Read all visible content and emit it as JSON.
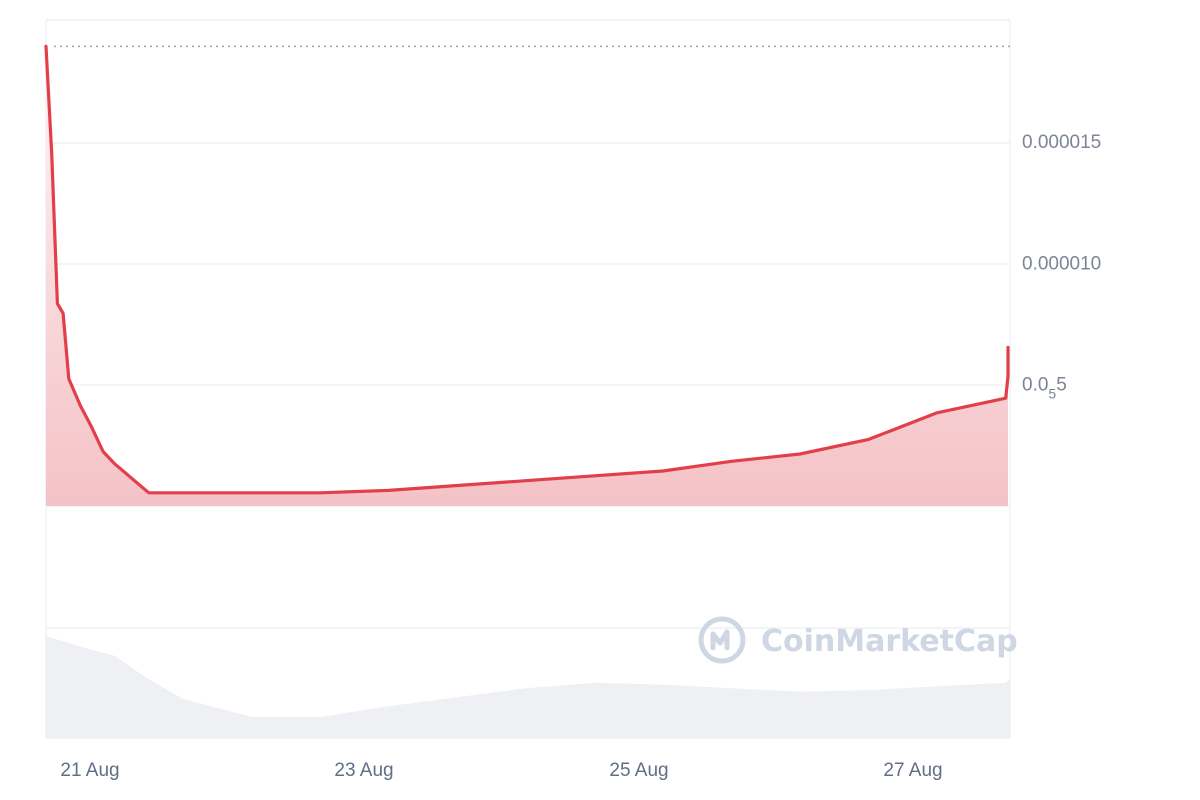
{
  "watermark": {
    "text": "CoinMarketCap",
    "icon": "coinmarketcap-logo-icon"
  },
  "colors": {
    "line": "#e23f4a",
    "area_top": "#fef4f4",
    "area_bottom": "#f4c2c6",
    "volume": "#eef0f4",
    "grid": "#eceef2",
    "ref_line": "#9aa1ad"
  },
  "chart_data": {
    "type": "area",
    "x_unit": "date",
    "x_ticks": [
      "21 Aug",
      "23 Aug",
      "25 Aug",
      "27 Aug"
    ],
    "y_ticks": [
      {
        "value": 1.5e-05,
        "label": "0.000015"
      },
      {
        "value": 1e-05,
        "label": "0.000010"
      },
      {
        "value": 5e-06,
        "label_main": "0.0",
        "label_sub": "5",
        "label_end": "5"
      }
    ],
    "ylim": [
      -1e-05,
      1.9e-05
    ],
    "grid": true,
    "start_price": 1.89e-05,
    "price_series": {
      "x": [
        "2024-08-20 12:00",
        "2024-08-20 13:00",
        "2024-08-20 14:00",
        "2024-08-20 15:00",
        "2024-08-20 16:00",
        "2024-08-20 18:00",
        "2024-08-20 20:00",
        "2024-08-20 22:00",
        "2024-08-21 00:00",
        "2024-08-21 03:00",
        "2024-08-21 06:00",
        "2024-08-21 09:00",
        "2024-08-21 12:00",
        "2024-08-21 18:00",
        "2024-08-22 00:00",
        "2024-08-22 12:00",
        "2024-08-23 00:00",
        "2024-08-23 12:00",
        "2024-08-24 00:00",
        "2024-08-24 12:00",
        "2024-08-25 00:00",
        "2024-08-25 12:00",
        "2024-08-26 00:00",
        "2024-08-26 12:00",
        "2024-08-27 00:00",
        "2024-08-27 12:00",
        "2024-08-28 00:00",
        "2024-08-28 06:00",
        "2024-08-28 09:00"
      ],
      "y": [
        1.89e-05,
        1.45e-05,
        8.3e-06,
        7.9e-06,
        5.2e-06,
        4.1e-06,
        3.2e-06,
        2.2e-06,
        1.7e-06,
        1.1e-06,
        5e-07,
        5e-07,
        5e-07,
        5e-07,
        5e-07,
        5e-07,
        6e-07,
        8e-07,
        1e-06,
        1.2e-06,
        1.4e-06,
        1.8e-06,
        2.1e-06,
        2.7e-06,
        3.8e-06,
        4.4e-06,
        5.3e-06,
        6e-06,
        6.5e-06
      ]
    },
    "volume_series": {
      "x": [
        "2024-08-20 12:00",
        "2024-08-20 18:00",
        "2024-08-21 00:00",
        "2024-08-21 06:00",
        "2024-08-21 12:00",
        "2024-08-22 00:00",
        "2024-08-22 12:00",
        "2024-08-23 00:00",
        "2024-08-23 12:00",
        "2024-08-24 00:00",
        "2024-08-24 12:00",
        "2024-08-25 00:00",
        "2024-08-25 12:00",
        "2024-08-26 00:00",
        "2024-08-26 12:00",
        "2024-08-27 00:00",
        "2024-08-27 12:00",
        "2024-08-28 00:00",
        "2024-08-28 09:00"
      ],
      "relative": [
        1.0,
        0.88,
        0.78,
        0.52,
        0.3,
        0.1,
        0.1,
        0.22,
        0.32,
        0.42,
        0.48,
        0.46,
        0.42,
        0.38,
        0.4,
        0.44,
        0.48,
        0.52,
        0.5
      ]
    }
  }
}
